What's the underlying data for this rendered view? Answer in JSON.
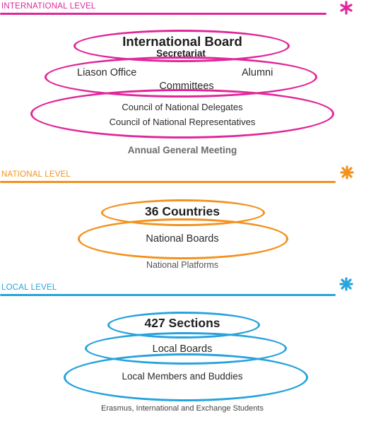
{
  "colors": {
    "international": "#e0279a",
    "national": "#f2921f",
    "local": "#27a3dd",
    "text_dark": "#2a2a2a",
    "text_muted": "#666666"
  },
  "international": {
    "section_title": "INTERNATIONAL LEVEL",
    "icon": "asterisk-flower-icon",
    "board": "International Board",
    "secretariat": "Secretariat",
    "liason_office": "Liason Office",
    "alumni": "Alumni",
    "committees": "Committees",
    "council_delegates": "Council of National Delegates",
    "council_representatives": "Council of National Representatives",
    "agm": "Annual General Meeting"
  },
  "national": {
    "section_title": "NATIONAL LEVEL",
    "icon": "asterisk-flower-icon",
    "countries": "36 Countries",
    "boards": "National Boards",
    "platforms": "National Platforms"
  },
  "local": {
    "section_title": "LOCAL LEVEL",
    "icon": "asterisk-flower-icon",
    "sections": "427 Sections",
    "boards": "Local Boards",
    "members": "Local Members and Buddies",
    "students": "Erasmus, International and Exchange Students"
  }
}
